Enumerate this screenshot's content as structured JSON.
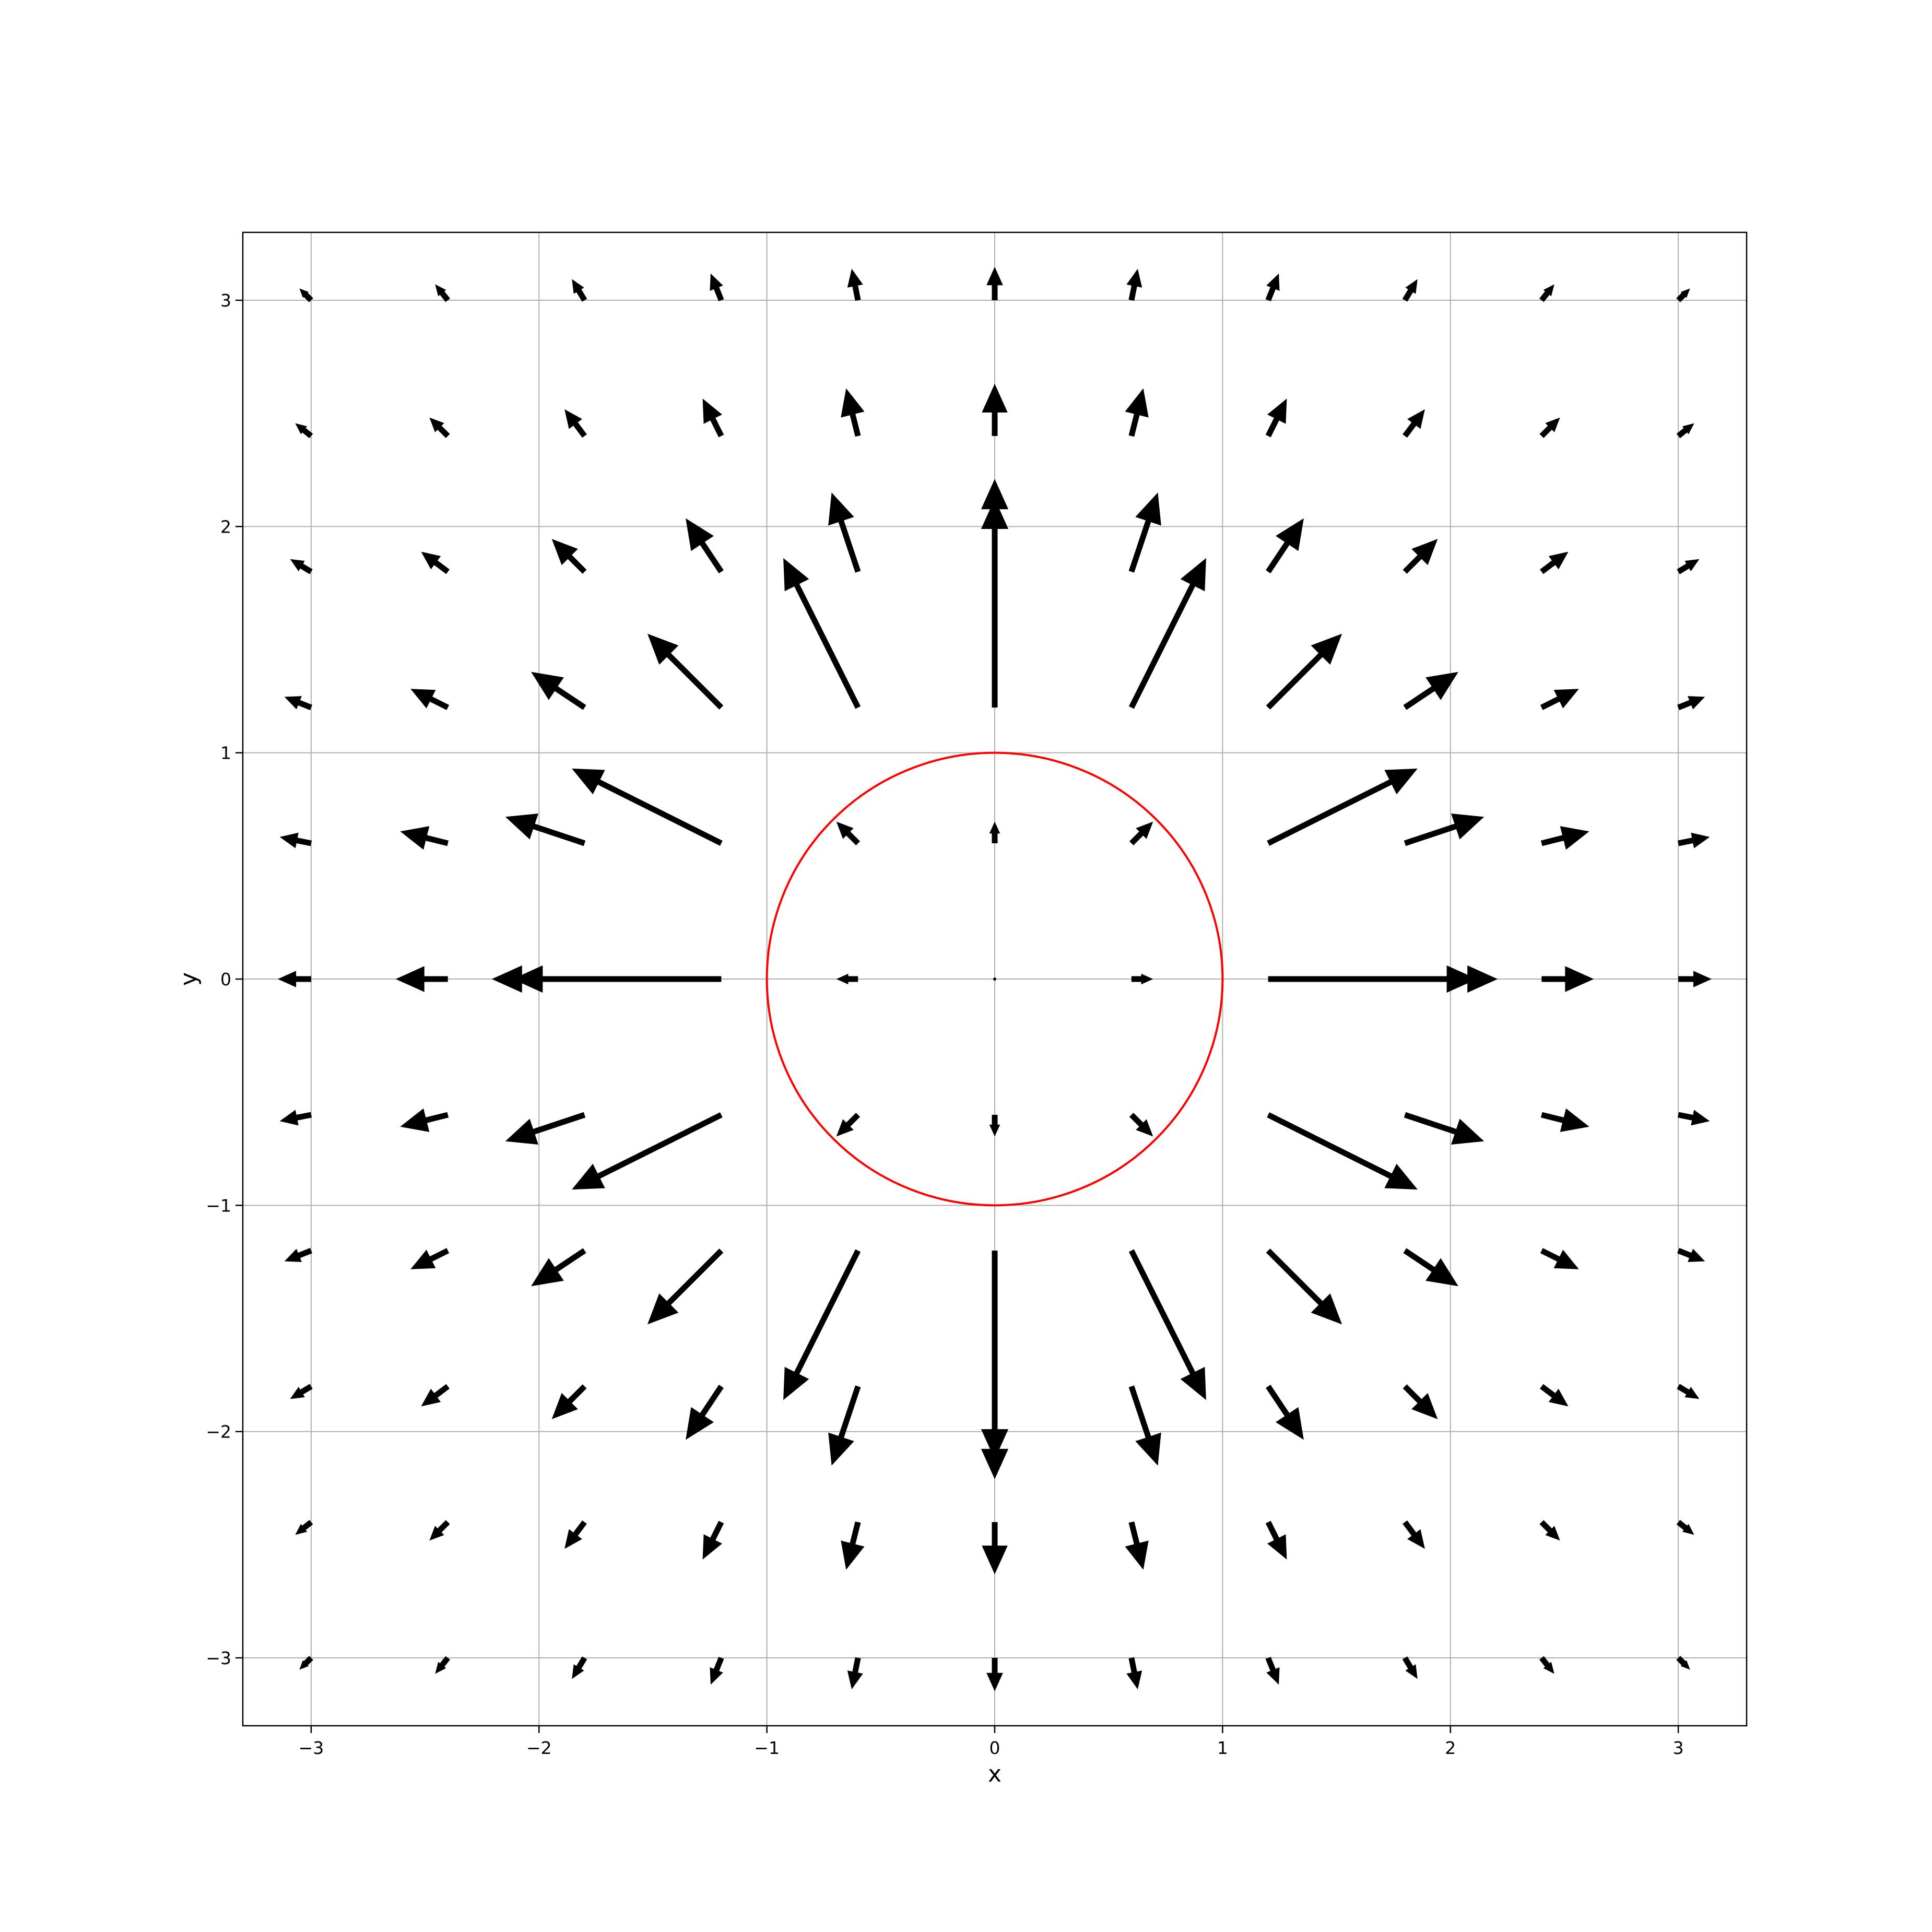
{
  "chart_data": {
    "type": "quiver",
    "title": "",
    "xlabel": "x",
    "ylabel": "y",
    "xlim": [
      -3.3,
      3.3
    ],
    "ylim": [
      -3.3,
      3.3
    ],
    "grid": true,
    "xticks": [
      -3,
      -2,
      -1,
      0,
      1,
      2,
      3
    ],
    "yticks": [
      -3,
      -2,
      -1,
      0,
      1,
      2,
      3
    ],
    "xtick_labels": [
      "−3",
      "−2",
      "−1",
      "0",
      "1",
      "2",
      "3"
    ],
    "ytick_labels": [
      "−3",
      "−2",
      "−1",
      "0",
      "1",
      "2",
      "3"
    ],
    "grid_points_x": [
      -3,
      -2.4,
      -1.8,
      -1.2,
      -0.6,
      0,
      0.6,
      1.2,
      1.8,
      2.4,
      3
    ],
    "grid_points_y": [
      -3,
      -2.4,
      -1.8,
      -1.2,
      -0.6,
      0,
      0.6,
      1.2,
      1.8,
      2.4,
      3
    ],
    "field": "radial outward field outside the unit circle, decaying with distance; near zero inside",
    "arrow_color": "#000000",
    "circle": {
      "center": [
        0,
        0
      ],
      "radius": 1,
      "color": "#ff0000"
    }
  }
}
